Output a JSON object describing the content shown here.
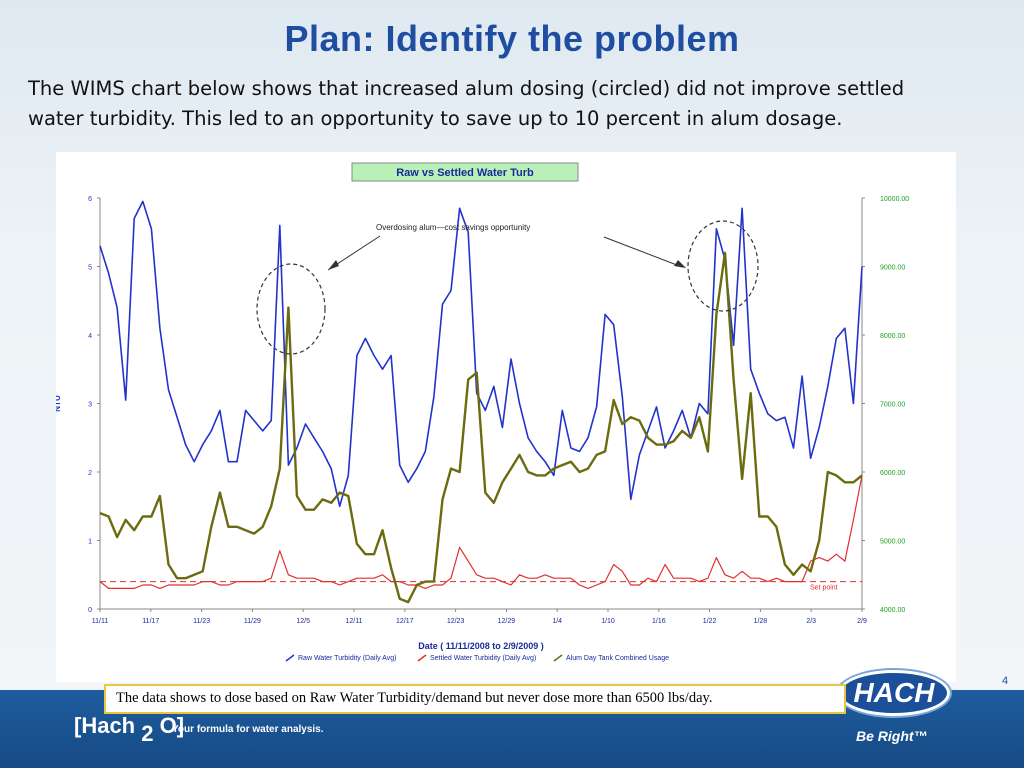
{
  "slide": {
    "title": "Plan: Identify the problem",
    "body": "The WIMS chart below shows that increased alum dosing (circled) did not improve settled water turbidity.  This led to an opportunity to save up to 10 percent in alum dosage.",
    "caption": "The data shows to dose based on Raw Water Turbidity/demand but never dose more than 6500 lbs/day.",
    "page_number": "4",
    "brand_left": "[Hach",
    "brand_sub": "2",
    "brand_right": "O]",
    "brand_tagline": "Your formula for water analysis.",
    "logo_text": "HACH",
    "reg_mark": "®",
    "be_right": "Be Right™"
  },
  "colors": {
    "raw": "#2233cc",
    "settled": "#e03030",
    "alum": "#6b6b10",
    "setpoint": "#e03030",
    "axis_left": "#2233cc",
    "axis_right": "#22a022",
    "title_box_bg": "#b8f0b8"
  },
  "chart_data": {
    "type": "line",
    "title": "Raw vs Settled Water Turb",
    "xlabel": "Date  ( 11/11/2008  to  2/9/2009 )",
    "ylabel": "NTU",
    "ylim": [
      0,
      6
    ],
    "y2lim": [
      4000,
      10000
    ],
    "yticks": [
      "0",
      "1",
      "2",
      "3",
      "4",
      "5",
      "6"
    ],
    "y2ticks": [
      "4000.00",
      "5000.00",
      "6000.00",
      "7000.00",
      "8000.00",
      "9000.00",
      "10000.00"
    ],
    "x_tick_labels": [
      "11/11",
      "11/17",
      "11/23",
      "11/29",
      "12/5",
      "12/11",
      "12/17",
      "12/23",
      "12/29",
      "1/4",
      "1/10",
      "1/16",
      "1/22",
      "1/28",
      "2/3",
      "2/9"
    ],
    "x_days": 90,
    "annotation": "Overdosing alum—cost savings opportunity",
    "setpoint_label": "Set point",
    "setpoint_value": 0.4,
    "legend": [
      "Raw Water Turbidity (Daily Avg)",
      "Settled Water Turbidity (Daily Avg)",
      "Alum Day Tank Combined Usage"
    ],
    "series": [
      {
        "name": "Raw Water Turbidity (Daily Avg)",
        "axis": "left",
        "values": [
          5.3,
          4.9,
          4.4,
          3.05,
          5.7,
          5.95,
          5.55,
          4.1,
          3.2,
          2.8,
          2.4,
          2.15,
          2.4,
          2.6,
          2.9,
          2.15,
          2.15,
          2.9,
          2.75,
          2.6,
          2.75,
          5.6,
          2.1,
          2.35,
          2.7,
          2.5,
          2.3,
          2.05,
          1.5,
          1.95,
          3.7,
          3.95,
          3.7,
          3.5,
          3.7,
          2.1,
          1.85,
          2.05,
          2.3,
          3.1,
          4.45,
          4.65,
          5.85,
          5.5,
          3.15,
          2.9,
          3.25,
          2.65,
          3.65,
          3.0,
          2.5,
          2.3,
          2.15,
          1.95,
          2.9,
          2.35,
          2.3,
          2.5,
          2.95,
          4.3,
          4.15,
          3.1,
          1.6,
          2.25,
          2.6,
          2.95,
          2.35,
          2.6,
          2.9,
          2.5,
          3.0,
          2.85,
          5.55,
          5.1,
          3.85,
          5.85,
          3.5,
          3.15,
          2.85,
          2.75,
          2.8,
          2.35,
          3.4,
          2.2,
          2.65,
          3.25,
          3.95,
          4.1,
          3.0,
          5.0
        ]
      },
      {
        "name": "Settled Water Turbidity (Daily Avg)",
        "axis": "left",
        "values": [
          0.4,
          0.3,
          0.3,
          0.3,
          0.3,
          0.35,
          0.35,
          0.3,
          0.35,
          0.35,
          0.35,
          0.35,
          0.4,
          0.4,
          0.35,
          0.35,
          0.4,
          0.4,
          0.4,
          0.4,
          0.45,
          0.85,
          0.5,
          0.45,
          0.45,
          0.45,
          0.4,
          0.4,
          0.35,
          0.4,
          0.45,
          0.45,
          0.45,
          0.5,
          0.4,
          0.4,
          0.35,
          0.35,
          0.3,
          0.35,
          0.35,
          0.45,
          0.9,
          0.7,
          0.5,
          0.45,
          0.45,
          0.4,
          0.35,
          0.5,
          0.45,
          0.45,
          0.5,
          0.45,
          0.45,
          0.45,
          0.35,
          0.3,
          0.35,
          0.4,
          0.65,
          0.55,
          0.35,
          0.35,
          0.45,
          0.4,
          0.65,
          0.45,
          0.45,
          0.45,
          0.4,
          0.45,
          0.75,
          0.5,
          0.45,
          0.55,
          0.45,
          0.45,
          0.4,
          0.45,
          0.4,
          0.4,
          0.4,
          0.7,
          0.75,
          0.7,
          0.8,
          0.7,
          1.3,
          1.95
        ]
      },
      {
        "name": "Alum Day Tank Combined Usage",
        "axis": "right",
        "values": [
          5400,
          5350,
          5050,
          5300,
          5150,
          5350,
          5350,
          5650,
          4650,
          4450,
          4450,
          4500,
          4550,
          5200,
          5700,
          5200,
          5200,
          5150,
          5100,
          5200,
          5500,
          6050,
          8400,
          5650,
          5450,
          5450,
          5600,
          5550,
          5700,
          5650,
          4950,
          4800,
          4800,
          5150,
          4600,
          4150,
          4100,
          4350,
          4400,
          4400,
          5600,
          6050,
          6000,
          7350,
          7450,
          5700,
          5550,
          5850,
          6050,
          6250,
          6000,
          5950,
          5950,
          6050,
          6100,
          6150,
          6000,
          6050,
          6250,
          6300,
          7050,
          6700,
          6800,
          6750,
          6500,
          6400,
          6400,
          6450,
          6600,
          6500,
          6800,
          6300,
          8300,
          9200,
          7350,
          5900,
          7150,
          5350,
          5350,
          5200,
          4650,
          4500,
          4650,
          4550,
          5000,
          6000,
          5950,
          5850,
          5850,
          5950
        ]
      }
    ]
  }
}
